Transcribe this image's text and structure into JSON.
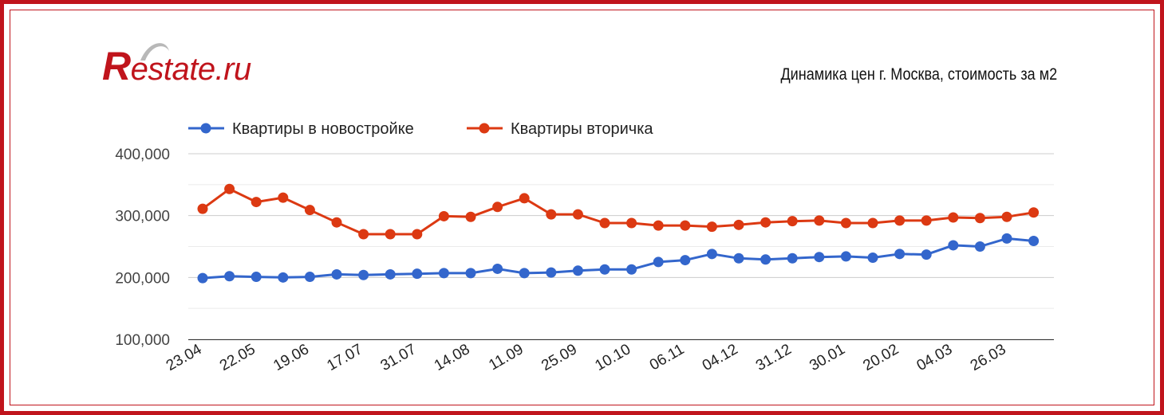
{
  "brand": {
    "logo_text": "Restate.ru",
    "logo_first": "R",
    "logo_rest": "estate.ru",
    "color": "#c0141c"
  },
  "chart_data": {
    "type": "line",
    "title": "Динамика цен г. Москва, стоимость за м2",
    "xlabel": "",
    "ylabel": "",
    "ylim": [
      100000,
      400000
    ],
    "yticks": [
      100000,
      200000,
      300000,
      400000
    ],
    "ytick_labels": [
      "100,000",
      "200,000",
      "300,000",
      "400,000"
    ],
    "grid": true,
    "legend_position": "top-left",
    "x_tick_labels": [
      "23.04",
      "22.05",
      "19.06",
      "17.07",
      "31.07",
      "14.08",
      "11.09",
      "25.09",
      "10.10",
      "06.11",
      "04.12",
      "31.12",
      "30.01",
      "20.02",
      "04.03",
      "26.03"
    ],
    "series": [
      {
        "name": "Квартиры в новостройке",
        "color": "#3366cc",
        "values": [
          199000,
          202000,
          201000,
          200000,
          201000,
          205000,
          204000,
          205000,
          206000,
          207000,
          207000,
          214000,
          207000,
          208000,
          211000,
          213000,
          213000,
          225000,
          228000,
          238000,
          231000,
          229000,
          231000,
          233000,
          234000,
          232000,
          238000,
          237000,
          252000,
          250000,
          263000,
          259000
        ]
      },
      {
        "name": "Квартиры вторичка",
        "color": "#dc3912",
        "values": [
          311000,
          343000,
          322000,
          329000,
          309000,
          289000,
          270000,
          270000,
          270000,
          299000,
          298000,
          314000,
          328000,
          302000,
          302000,
          288000,
          288000,
          284000,
          284000,
          282000,
          285000,
          289000,
          291000,
          292000,
          288000,
          288000,
          292000,
          292000,
          297000,
          296000,
          298000,
          305000
        ]
      }
    ]
  }
}
